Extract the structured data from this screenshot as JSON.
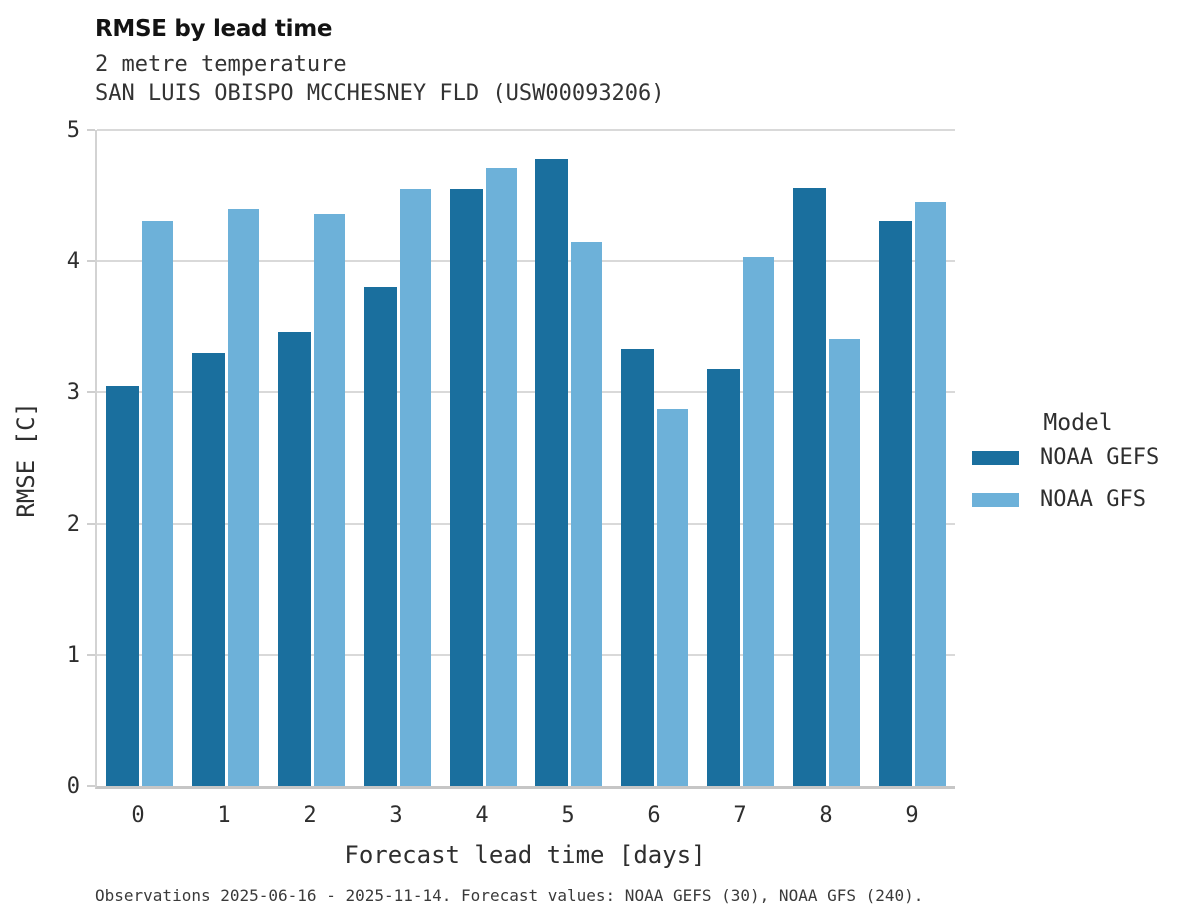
{
  "header": {
    "title": "RMSE by lead time",
    "subtitle1": "2 metre temperature",
    "subtitle2": "SAN LUIS OBISPO MCCHESNEY FLD (USW00093206)"
  },
  "chart_data": {
    "type": "bar",
    "title": "RMSE by lead time",
    "subtitle": [
      "2 metre temperature",
      "SAN LUIS OBISPO MCCHESNEY FLD (USW00093206)"
    ],
    "categories": [
      "0",
      "1",
      "2",
      "3",
      "4",
      "5",
      "6",
      "7",
      "8",
      "9"
    ],
    "series": [
      {
        "name": "NOAA GEFS",
        "color": "#1a6f9e",
        "values": [
          3.05,
          3.3,
          3.46,
          3.8,
          4.55,
          4.78,
          3.33,
          3.18,
          4.56,
          4.31
        ]
      },
      {
        "name": "NOAA GFS",
        "color": "#6db1d9",
        "values": [
          4.31,
          4.4,
          4.36,
          4.55,
          4.71,
          4.15,
          2.87,
          4.03,
          3.41,
          4.45
        ]
      }
    ],
    "xlabel": "Forecast lead time [days]",
    "ylabel": "RMSE [C]",
    "ylim": [
      0,
      5
    ],
    "yticks": [
      0,
      1,
      2,
      3,
      4,
      5
    ],
    "grid": true,
    "gridline_color": "#d9d9d9",
    "legend_title": "Model",
    "legend_position": "right"
  },
  "legend": {
    "title": "Model",
    "items": [
      {
        "label": "NOAA GEFS",
        "color": "#1a6f9e"
      },
      {
        "label": "NOAA GFS",
        "color": "#6db1d9"
      }
    ]
  },
  "caption": "Observations 2025-06-16 - 2025-11-14. Forecast values: NOAA GEFS (30), NOAA GFS (240)."
}
